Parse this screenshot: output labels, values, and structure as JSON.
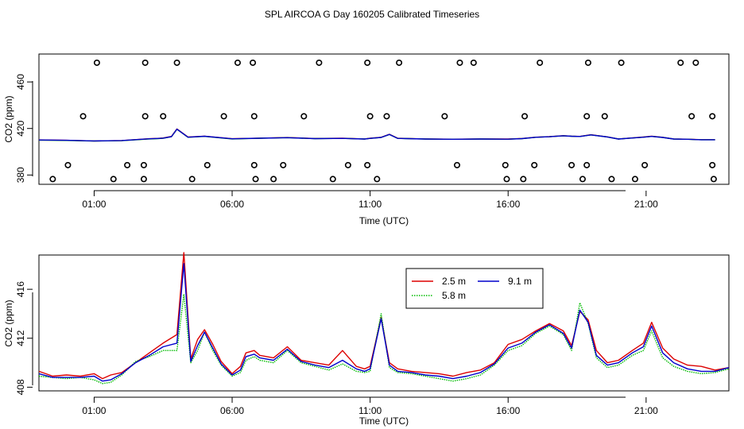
{
  "title": "SPL AIRCOA G  Day 160205  Calibrated Timeseries",
  "chart_data": [
    {
      "type": "scatter",
      "xlabel": "Time (UTC)",
      "ylabel": "CO2 (ppm)",
      "x_unit": "hours UTC",
      "xlim": [
        -1.0,
        24.0
      ],
      "ylim": [
        372,
        484
      ],
      "x_tick_values": [
        1,
        6,
        11,
        16,
        21
      ],
      "x_tick_labels": [
        "01:00",
        "06:00",
        "11:00",
        "16:00",
        "21:00"
      ],
      "y_tick_values": [
        380,
        420,
        460
      ],
      "y_tick_labels": [
        "380",
        "420",
        "460"
      ],
      "scatter_levels": [
        {
          "y": 476.5,
          "x": [
            1.1,
            2.85,
            4.0,
            6.2,
            6.75,
            9.15,
            10.9,
            12.05,
            14.25,
            14.75,
            17.15,
            18.9,
            20.1,
            22.25,
            22.8
          ]
        },
        {
          "y": 430.5,
          "x": [
            0.6,
            2.85,
            3.5,
            5.7,
            6.8,
            8.6,
            11.0,
            11.6,
            13.7,
            16.6,
            18.85,
            19.5,
            22.65,
            23.4
          ]
        },
        {
          "y": 388.5,
          "x": [
            0.05,
            2.2,
            2.8,
            5.1,
            6.8,
            7.85,
            10.2,
            10.9,
            14.15,
            15.9,
            16.95,
            18.3,
            18.85,
            20.95,
            23.4
          ]
        },
        {
          "y": 376.5,
          "x": [
            -0.5,
            1.7,
            2.8,
            4.55,
            6.85,
            7.5,
            9.65,
            11.25,
            15.95,
            16.55,
            18.7,
            19.75,
            20.6,
            23.45
          ]
        }
      ],
      "series": [
        {
          "color": "#cc0000",
          "x": [
            -1,
            0,
            1,
            2,
            3,
            3.3,
            3.5,
            3.8,
            4,
            4.4,
            5,
            6,
            7,
            8,
            9,
            10,
            10.8,
            11,
            11.4,
            11.7,
            12,
            13,
            14,
            15,
            16,
            16.5,
            17,
            17.5,
            18,
            18.3,
            18.6,
            19,
            19.6,
            20,
            20.5,
            20.9,
            21.2,
            21.6,
            22,
            22.5,
            23,
            23.5
          ],
          "y": [
            410.2,
            409.8,
            409.3,
            409.6,
            411.2,
            411.5,
            411.8,
            413.2,
            419.6,
            412.6,
            413.4,
            411.2,
            411.7,
            412.2,
            411.4,
            411.6,
            411.0,
            411.6,
            412.4,
            415.0,
            411.6,
            411.0,
            410.8,
            411.0,
            410.9,
            411.4,
            412.5,
            413.0,
            413.8,
            413.4,
            413.2,
            414.6,
            412.8,
            411.0,
            411.9,
            412.6,
            413.3,
            412.4,
            411.0,
            410.8,
            410.4,
            410.4
          ]
        },
        {
          "color": "#009900",
          "x": [
            -1,
            0,
            1,
            2,
            3,
            3.3,
            3.5,
            3.8,
            4,
            4.4,
            5,
            6,
            7,
            8,
            9,
            10,
            10.8,
            11,
            11.4,
            11.7,
            12,
            13,
            14,
            15,
            16,
            16.5,
            17,
            17.5,
            18,
            18.3,
            18.6,
            19,
            19.6,
            20,
            20.5,
            20.9,
            21.2,
            21.6,
            22,
            22.5,
            23,
            23.5
          ],
          "y": [
            410.0,
            409.7,
            409.2,
            409.5,
            411.0,
            411.3,
            411.6,
            412.9,
            419.3,
            412.4,
            413.2,
            411.0,
            411.6,
            412.1,
            411.3,
            411.5,
            410.9,
            411.5,
            412.3,
            414.8,
            411.5,
            410.9,
            410.7,
            410.9,
            410.8,
            411.3,
            412.4,
            412.9,
            413.7,
            413.3,
            413.1,
            414.5,
            412.7,
            410.9,
            411.8,
            412.5,
            413.2,
            412.3,
            410.9,
            410.7,
            410.3,
            410.3
          ]
        },
        {
          "color": "#0000cc",
          "x": [
            -1,
            0,
            1,
            2,
            3,
            3.3,
            3.5,
            3.8,
            4,
            4.4,
            5,
            6,
            7,
            8,
            9,
            10,
            10.8,
            11,
            11.4,
            11.7,
            12,
            13,
            14,
            15,
            16,
            16.5,
            17,
            17.5,
            18,
            18.3,
            18.6,
            19,
            19.6,
            20,
            20.5,
            20.9,
            21.2,
            21.6,
            22,
            22.5,
            23,
            23.5
          ],
          "y": [
            410.1,
            409.8,
            409.3,
            409.6,
            411.1,
            411.4,
            411.7,
            413.0,
            419.4,
            412.5,
            413.3,
            411.1,
            411.6,
            412.1,
            411.3,
            411.5,
            410.9,
            411.5,
            412.3,
            414.9,
            411.5,
            410.9,
            410.7,
            410.9,
            410.8,
            411.3,
            412.4,
            412.9,
            413.7,
            413.3,
            413.1,
            414.5,
            412.7,
            410.9,
            411.8,
            412.5,
            413.2,
            412.3,
            410.9,
            410.7,
            410.3,
            410.3
          ]
        }
      ]
    },
    {
      "type": "line",
      "xlabel": "Time (UTC)",
      "ylabel": "CO2 (ppm)",
      "x_unit": "hours UTC",
      "xlim": [
        -1.0,
        24.0
      ],
      "ylim": [
        407.7,
        418.8
      ],
      "x_tick_values": [
        1,
        6,
        11,
        16,
        21
      ],
      "x_tick_labels": [
        "01:00",
        "06:00",
        "11:00",
        "16:00",
        "21:00"
      ],
      "y_tick_values": [
        408,
        412,
        416
      ],
      "y_tick_labels": [
        "408",
        "412",
        "416"
      ],
      "legend_position": "top-center",
      "legend": [
        {
          "label": "2.5 m",
          "color": "#dd0000",
          "style": "solid"
        },
        {
          "label": "9.1 m",
          "color": "#0000cc",
          "style": "solid"
        },
        {
          "label": "5.8 m",
          "color": "#00bb00",
          "style": "dotted"
        }
      ],
      "series": [
        {
          "name": "2.5 m",
          "color": "#dd0000",
          "x": [
            -1,
            -0.5,
            0,
            0.5,
            1,
            1.3,
            1.6,
            2,
            2.5,
            3,
            3.5,
            4,
            4.25,
            4.5,
            4.75,
            5,
            5.3,
            5.6,
            6,
            6.3,
            6.5,
            6.8,
            7,
            7.5,
            8,
            8.5,
            9,
            9.5,
            10,
            10.5,
            10.8,
            11,
            11.4,
            11.7,
            12,
            12.5,
            13,
            13.5,
            14,
            14.5,
            15,
            15.5,
            16,
            16.5,
            17,
            17.5,
            18,
            18.3,
            18.6,
            18.9,
            19.2,
            19.6,
            20,
            20.5,
            20.9,
            21.2,
            21.6,
            22,
            22.5,
            23,
            23.5,
            24
          ],
          "y": [
            409.3,
            408.9,
            409.0,
            408.9,
            409.1,
            408.7,
            409.0,
            409.2,
            410.0,
            410.8,
            411.6,
            412.3,
            419.0,
            410.3,
            411.9,
            412.7,
            411.5,
            410.1,
            409.1,
            409.7,
            410.8,
            411.0,
            410.6,
            410.4,
            411.3,
            410.2,
            410.0,
            409.8,
            411.0,
            409.7,
            409.5,
            409.7,
            413.7,
            410.0,
            409.5,
            409.3,
            409.2,
            409.1,
            408.9,
            409.2,
            409.4,
            410.0,
            411.5,
            411.9,
            412.6,
            413.2,
            412.6,
            411.4,
            414.2,
            413.5,
            411.0,
            410.0,
            410.2,
            411.0,
            411.6,
            413.3,
            411.2,
            410.3,
            409.8,
            409.7,
            409.4,
            409.6
          ]
        },
        {
          "name": "5.8 m",
          "color": "#00bb00",
          "dotted": true,
          "x": [
            -1,
            -0.5,
            0,
            0.5,
            1,
            1.3,
            1.6,
            2,
            2.5,
            3,
            3.5,
            4,
            4.25,
            4.5,
            4.75,
            5,
            5.3,
            5.6,
            6,
            6.3,
            6.5,
            6.8,
            7,
            7.5,
            8,
            8.5,
            9,
            9.5,
            10,
            10.5,
            10.8,
            11,
            11.4,
            11.7,
            12,
            12.5,
            13,
            13.5,
            14,
            14.5,
            15,
            15.5,
            16,
            16.5,
            17,
            17.5,
            18,
            18.3,
            18.6,
            18.9,
            19.2,
            19.6,
            20,
            20.5,
            20.9,
            21.2,
            21.6,
            22,
            22.5,
            23,
            23.5,
            24
          ],
          "y": [
            408.9,
            408.8,
            408.7,
            408.8,
            408.6,
            408.3,
            408.4,
            409.0,
            410.1,
            410.5,
            411.0,
            411.0,
            415.6,
            410.0,
            411.0,
            412.5,
            411.0,
            409.8,
            408.9,
            409.2,
            410.2,
            410.5,
            410.2,
            410.0,
            411.0,
            410.0,
            409.7,
            409.4,
            409.9,
            409.3,
            409.2,
            409.3,
            414.0,
            409.6,
            409.2,
            409.1,
            408.9,
            408.7,
            408.5,
            408.7,
            409.0,
            409.8,
            411.0,
            411.4,
            412.4,
            413.0,
            412.3,
            411.0,
            414.9,
            413.2,
            410.4,
            409.6,
            409.8,
            410.6,
            411.0,
            412.6,
            410.4,
            409.7,
            409.3,
            409.1,
            409.2,
            409.5
          ]
        },
        {
          "name": "9.1 m",
          "color": "#0000cc",
          "x": [
            -1,
            -0.5,
            0,
            0.5,
            1,
            1.3,
            1.6,
            2,
            2.5,
            3,
            3.5,
            4,
            4.25,
            4.5,
            4.75,
            5,
            5.3,
            5.6,
            6,
            6.3,
            6.5,
            6.8,
            7,
            7.5,
            8,
            8.5,
            9,
            9.5,
            10,
            10.5,
            10.8,
            11,
            11.4,
            11.7,
            12,
            12.5,
            13,
            13.5,
            14,
            14.5,
            15,
            15.5,
            16,
            16.5,
            17,
            17.5,
            18,
            18.3,
            18.6,
            18.9,
            19.2,
            19.6,
            20,
            20.5,
            20.9,
            21.2,
            21.6,
            22,
            22.5,
            23,
            23.5,
            24
          ],
          "y": [
            409.1,
            408.8,
            408.8,
            408.8,
            408.9,
            408.5,
            408.6,
            409.1,
            410.0,
            410.6,
            411.3,
            411.6,
            418.1,
            410.1,
            411.4,
            412.5,
            411.2,
            409.9,
            409.0,
            409.4,
            410.5,
            410.7,
            410.4,
            410.2,
            411.1,
            410.1,
            409.8,
            409.6,
            410.2,
            409.5,
            409.3,
            409.5,
            413.6,
            409.8,
            409.3,
            409.2,
            409.0,
            408.9,
            408.7,
            408.9,
            409.2,
            409.9,
            411.2,
            411.6,
            412.5,
            413.1,
            412.4,
            411.2,
            414.3,
            413.3,
            410.6,
            409.8,
            410.0,
            410.8,
            411.3,
            413.0,
            410.8,
            410.0,
            409.5,
            409.3,
            409.3,
            409.6
          ]
        }
      ]
    }
  ]
}
